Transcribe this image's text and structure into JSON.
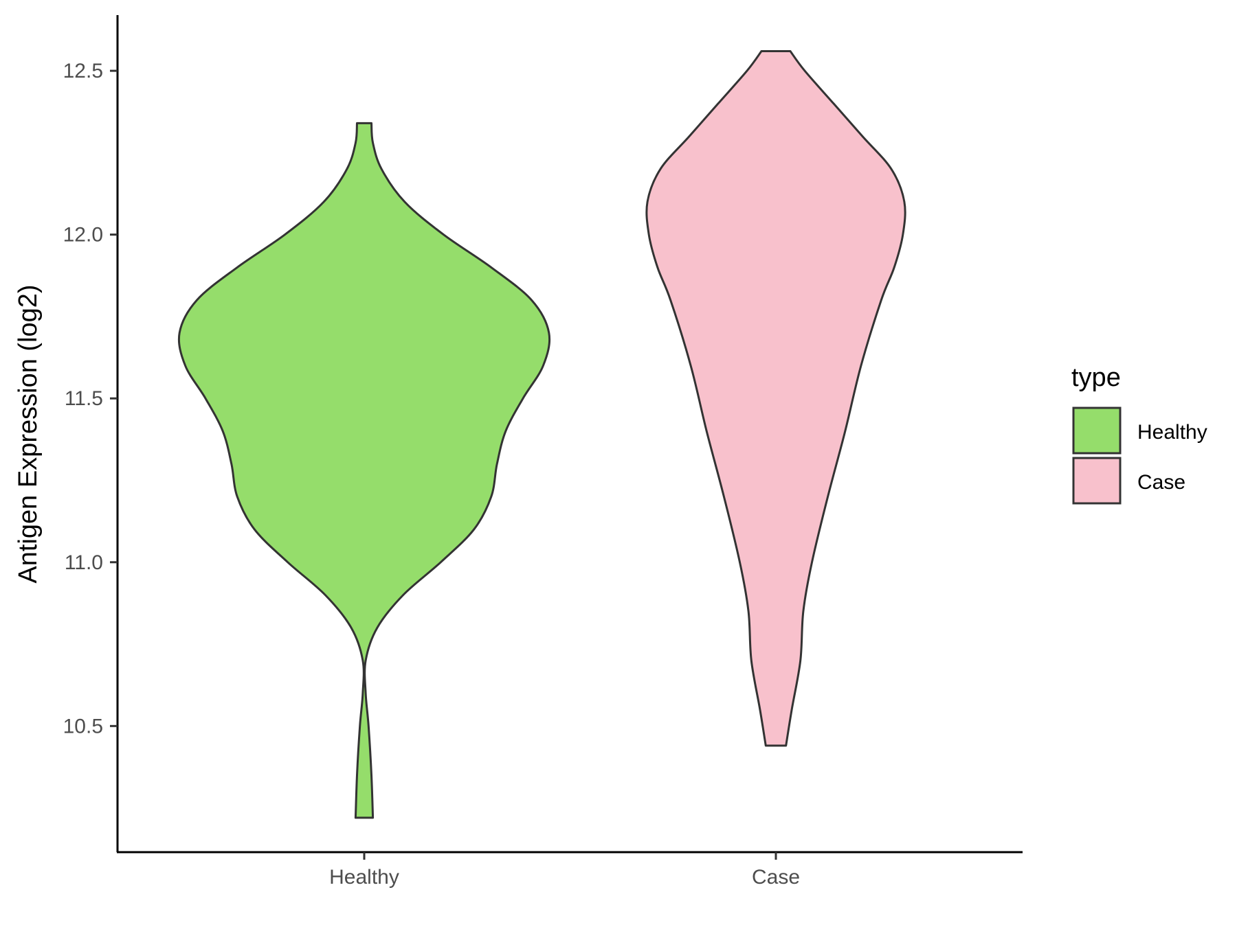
{
  "chart_data": {
    "type": "violin",
    "ylabel": "Antigen Expression (log2)",
    "xlabel": "",
    "categories": [
      "Healthy",
      "Case"
    ],
    "y_ticks": [
      {
        "value": 10.5,
        "label": "10.5"
      },
      {
        "value": 11.0,
        "label": "11.0"
      },
      {
        "value": 11.5,
        "label": "11.5"
      },
      {
        "value": 12.0,
        "label": "12.0"
      },
      {
        "value": 12.5,
        "label": "12.5"
      }
    ],
    "ylim": [
      10.115,
      12.67
    ],
    "grid": false,
    "legend": {
      "title": "type",
      "placement": "right",
      "entries": [
        {
          "label": "Healthy",
          "color": "#95DD6B"
        },
        {
          "label": "Case",
          "color": "#F8C1CC"
        }
      ]
    },
    "series": [
      {
        "category": "Healthy",
        "color": "#95DD6B",
        "min": 10.22,
        "max": 12.34,
        "density": [
          [
            10.22,
            0.06
          ],
          [
            10.35,
            0.05
          ],
          [
            10.5,
            0.03
          ],
          [
            10.6,
            0.01
          ],
          [
            10.7,
            0.01
          ],
          [
            10.8,
            0.09
          ],
          [
            10.9,
            0.27
          ],
          [
            11.0,
            0.53
          ],
          [
            11.1,
            0.76
          ],
          [
            11.2,
            0.88
          ],
          [
            11.3,
            0.92
          ],
          [
            11.4,
            0.98
          ],
          [
            11.5,
            1.1
          ],
          [
            11.6,
            1.24
          ],
          [
            11.7,
            1.28
          ],
          [
            11.8,
            1.16
          ],
          [
            11.9,
            0.88
          ],
          [
            12.0,
            0.55
          ],
          [
            12.1,
            0.28
          ],
          [
            12.2,
            0.12
          ],
          [
            12.28,
            0.06
          ],
          [
            12.34,
            0.05
          ]
        ]
      },
      {
        "category": "Case",
        "color": "#F8C1CC",
        "min": 10.44,
        "max": 12.56,
        "density": [
          [
            10.44,
            0.07
          ],
          [
            10.55,
            0.11
          ],
          [
            10.7,
            0.17
          ],
          [
            10.85,
            0.19
          ],
          [
            11.0,
            0.25
          ],
          [
            11.2,
            0.36
          ],
          [
            11.4,
            0.48
          ],
          [
            11.6,
            0.59
          ],
          [
            11.8,
            0.73
          ],
          [
            11.9,
            0.82
          ],
          [
            12.0,
            0.88
          ],
          [
            12.1,
            0.89
          ],
          [
            12.2,
            0.8
          ],
          [
            12.3,
            0.6
          ],
          [
            12.4,
            0.4
          ],
          [
            12.5,
            0.2
          ],
          [
            12.56,
            0.1
          ]
        ]
      }
    ]
  }
}
